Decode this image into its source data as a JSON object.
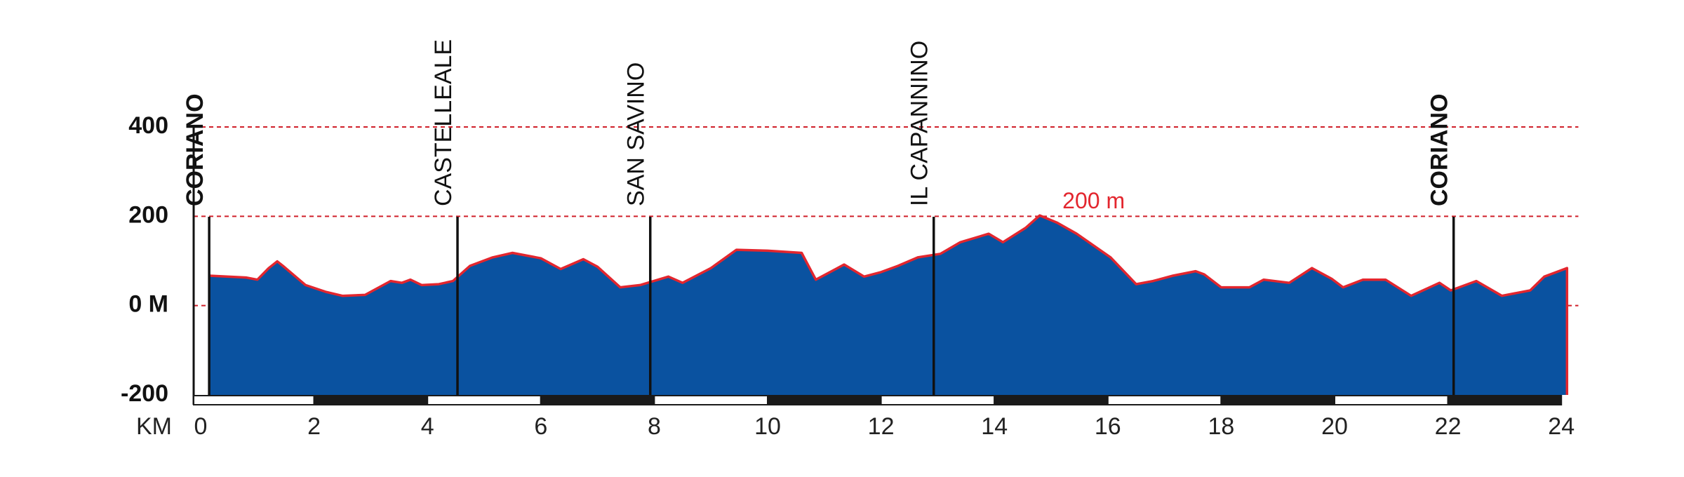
{
  "chart_data": {
    "type": "area",
    "x_label": "KM",
    "x": [
      0.15,
      0.8,
      1.0,
      1.2,
      1.35,
      1.45,
      1.85,
      2.2,
      2.5,
      2.9,
      3.35,
      3.55,
      3.7,
      3.9,
      4.2,
      4.45,
      4.75,
      5.15,
      5.5,
      6.0,
      6.35,
      6.75,
      7.0,
      7.4,
      7.75,
      8.25,
      8.5,
      9.0,
      9.45,
      10.0,
      10.6,
      10.85,
      11.35,
      11.7,
      12.0,
      12.3,
      12.65,
      13.05,
      13.4,
      13.9,
      14.15,
      14.55,
      14.8,
      15.1,
      15.45,
      16.05,
      16.5,
      16.8,
      17.15,
      17.55,
      17.7,
      18.0,
      18.5,
      18.75,
      19.2,
      19.6,
      19.95,
      20.15,
      20.5,
      20.9,
      21.35,
      21.85,
      22.05,
      22.5,
      22.95,
      23.45,
      23.7,
      24.1
    ],
    "values": [
      67,
      63,
      58,
      84,
      99,
      89,
      46,
      31,
      22,
      24,
      55,
      51,
      58,
      46,
      48,
      55,
      89,
      108,
      118,
      106,
      82,
      104,
      87,
      41,
      46,
      65,
      51,
      84,
      125,
      123,
      118,
      58,
      92,
      65,
      75,
      89,
      108,
      116,
      142,
      161,
      142,
      174,
      202,
      186,
      161,
      108,
      48,
      55,
      67,
      77,
      70,
      41,
      41,
      58,
      51,
      84,
      60,
      41,
      58,
      58,
      22,
      51,
      34,
      55,
      22,
      34,
      65,
      84
    ],
    "fill_color": "#0a52a0",
    "line_color": "#e3262e",
    "xlim": [
      0,
      24.3
    ],
    "xticks": [
      0,
      2,
      4,
      6,
      8,
      10,
      12,
      14,
      16,
      18,
      20,
      22,
      24
    ],
    "ylim": [
      -200,
      400
    ],
    "yticks": [
      -200,
      {
        "value": 0,
        "label": "0 M"
      },
      200,
      400
    ],
    "grid": true,
    "grid_color": "#d0202a",
    "locations": [
      {
        "name": "CORIANO",
        "km": 0.15,
        "bold": true
      },
      {
        "name": "CASTELLEALE",
        "km": 4.53,
        "bold": false
      },
      {
        "name": "SAN SAVINO",
        "km": 7.93,
        "bold": false
      },
      {
        "name": "IL CAPANNINO",
        "km": 12.93,
        "bold": false
      },
      {
        "name": "CORIANO",
        "km": 22.1,
        "bold": true
      }
    ],
    "annotations": [
      {
        "text": "200 m",
        "x": 15.2,
        "y": 200
      }
    ]
  }
}
